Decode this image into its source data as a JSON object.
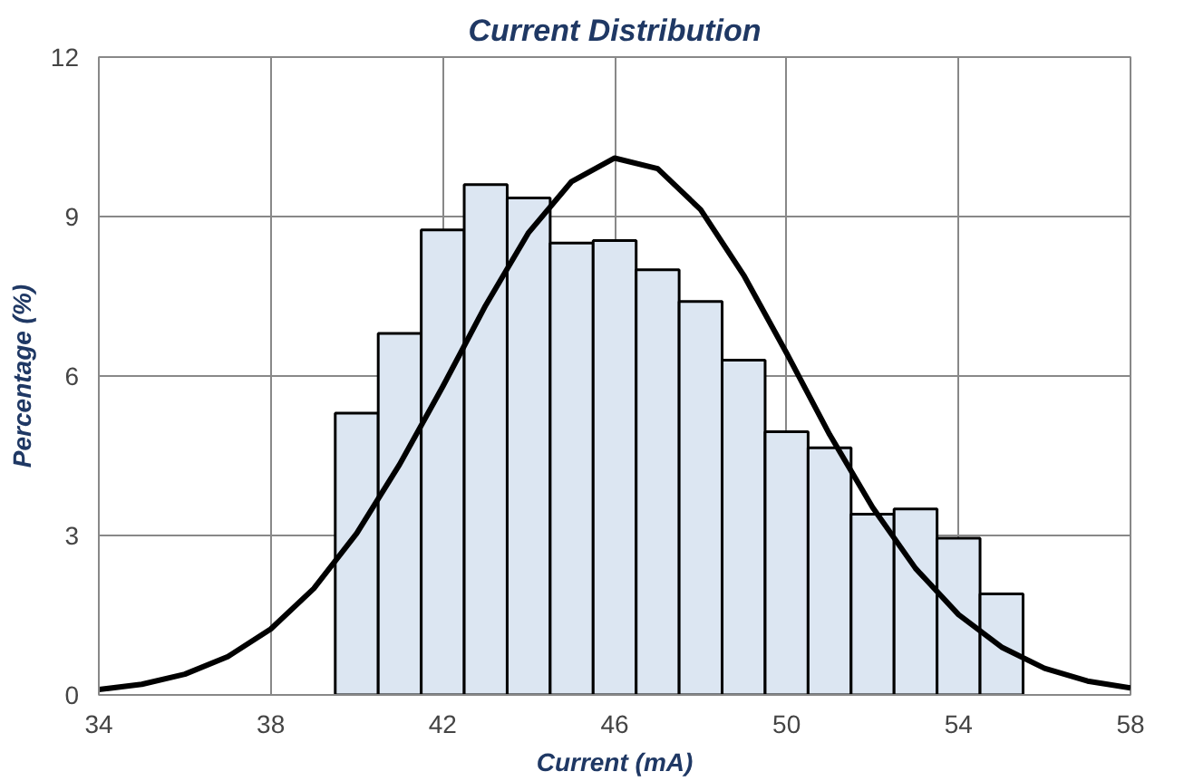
{
  "chart_data": {
    "type": "histogram",
    "title": "Current Distribution",
    "xlabel": "Current (mA)",
    "ylabel": "Percentage (%)",
    "bins": [
      39.5,
      40.5,
      41.5,
      42.5,
      43.5,
      44.5,
      45.5,
      46.5,
      47.5,
      48.5,
      49.5,
      50.5,
      51.5,
      52.5,
      53.5,
      54.5,
      55.5
    ],
    "values": [
      5.3,
      6.8,
      8.75,
      9.6,
      9.35,
      8.5,
      8.55,
      8.0,
      7.4,
      6.3,
      4.95,
      4.65,
      3.4,
      3.5,
      2.95,
      1.9
    ],
    "color": "#dce6f2",
    "series": [
      {
        "type": "line",
        "color": "#000000",
        "x": [
          34,
          35,
          36,
          37,
          38,
          39,
          40,
          41,
          42,
          43,
          44,
          45,
          46,
          47,
          48,
          49,
          50,
          51,
          52,
          53,
          54,
          55,
          56,
          57,
          58
        ],
        "values": [
          0.1,
          0.2,
          0.39,
          0.72,
          1.24,
          2.0,
          3.04,
          4.34,
          5.8,
          7.33,
          8.7,
          9.66,
          10.1,
          9.9,
          9.13,
          7.9,
          6.43,
          4.9,
          3.53,
          2.38,
          1.51,
          0.9,
          0.5,
          0.26,
          0.13
        ]
      }
    ],
    "xlim": [
      34,
      58
    ],
    "xticks": [
      34,
      38,
      42,
      46,
      50,
      54,
      58
    ],
    "ylim": [
      0,
      12
    ],
    "yticks": [
      0,
      3,
      6,
      9,
      12
    ],
    "grid": true
  }
}
